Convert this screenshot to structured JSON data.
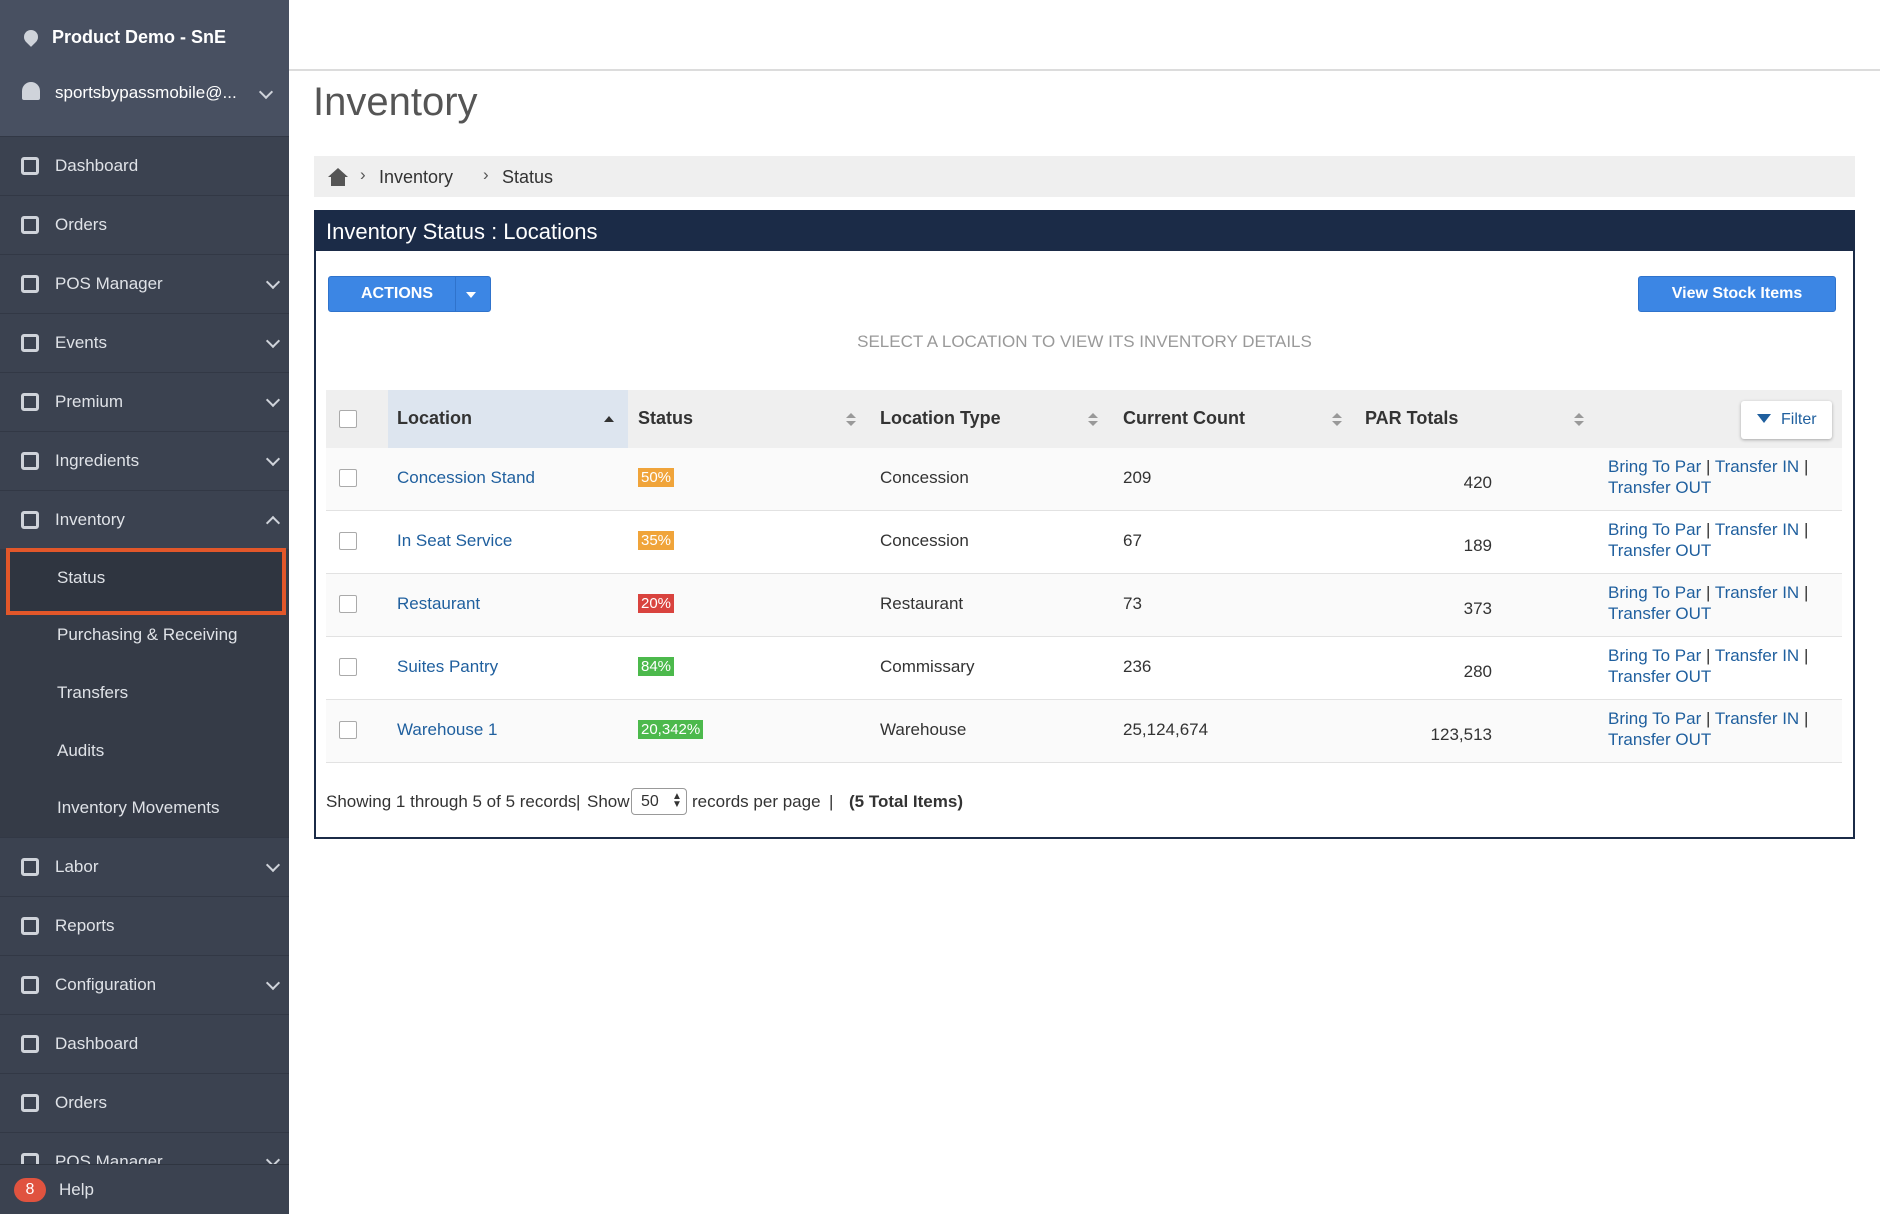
{
  "sidebar": {
    "org": "Product Demo - SnE",
    "user": "sportsbypassmobile@...",
    "nav": [
      {
        "label": "Dashboard",
        "expandable": false
      },
      {
        "label": "Orders",
        "expandable": false
      },
      {
        "label": "POS Manager",
        "expandable": true
      },
      {
        "label": "Events",
        "expandable": true
      },
      {
        "label": "Premium",
        "expandable": true
      },
      {
        "label": "Ingredients",
        "expandable": true
      },
      {
        "label": "Inventory",
        "expandable": true,
        "open": true,
        "submenu": [
          {
            "label": "Status",
            "selected": true
          },
          {
            "label": "Purchasing & Receiving"
          },
          {
            "label": "Transfers"
          },
          {
            "label": "Audits"
          },
          {
            "label": "Inventory Movements"
          }
        ]
      },
      {
        "label": "Labor",
        "expandable": true
      },
      {
        "label": "Reports",
        "expandable": false
      },
      {
        "label": "Configuration",
        "expandable": true
      },
      {
        "label": "Dashboard",
        "expandable": false
      },
      {
        "label": "Orders",
        "expandable": false
      },
      {
        "label": "POS Manager",
        "expandable": true
      }
    ],
    "help_badge": "8",
    "help": "Help"
  },
  "page": {
    "title": "Inventory",
    "breadcrumb": [
      "Inventory",
      "Status"
    ],
    "panel_title": "Inventory Status : Locations",
    "actions_button": "ACTIONS",
    "view_button": "View Stock Items",
    "instruction": "SELECT A LOCATION TO VIEW ITS INVENTORY DETAILS",
    "table": {
      "headers": [
        "Location",
        "Status",
        "Location Type",
        "Current Count",
        "PAR Totals"
      ],
      "filter": "Filter",
      "row_actions": [
        "Bring To Par",
        "Transfer IN",
        "Transfer OUT"
      ],
      "separator": "|",
      "rows": [
        {
          "location": "Concession Stand",
          "status": "50%",
          "status_color": "#f0a43a",
          "type": "Concession",
          "count": "209",
          "par": "420"
        },
        {
          "location": "In Seat Service",
          "status": "35%",
          "status_color": "#f0a43a",
          "type": "Concession",
          "count": "67",
          "par": "189"
        },
        {
          "location": "Restaurant",
          "status": "20%",
          "status_color": "#d9433e",
          "type": "Restaurant",
          "count": "73",
          "par": "373"
        },
        {
          "location": "Suites Pantry",
          "status": "84%",
          "status_color": "#4cb94c",
          "type": "Commissary",
          "count": "236",
          "par": "280"
        },
        {
          "location": "Warehouse 1",
          "status": "20,342%",
          "status_color": "#4cb94c",
          "type": "Warehouse",
          "count": "25,124,674",
          "par": "123,513"
        }
      ]
    },
    "footer": {
      "showing": "Showing 1 through 5 of 5 records",
      "show": "Show",
      "per_page": "50",
      "records_per_page": "records per page",
      "total": "(5 Total Items)"
    }
  }
}
